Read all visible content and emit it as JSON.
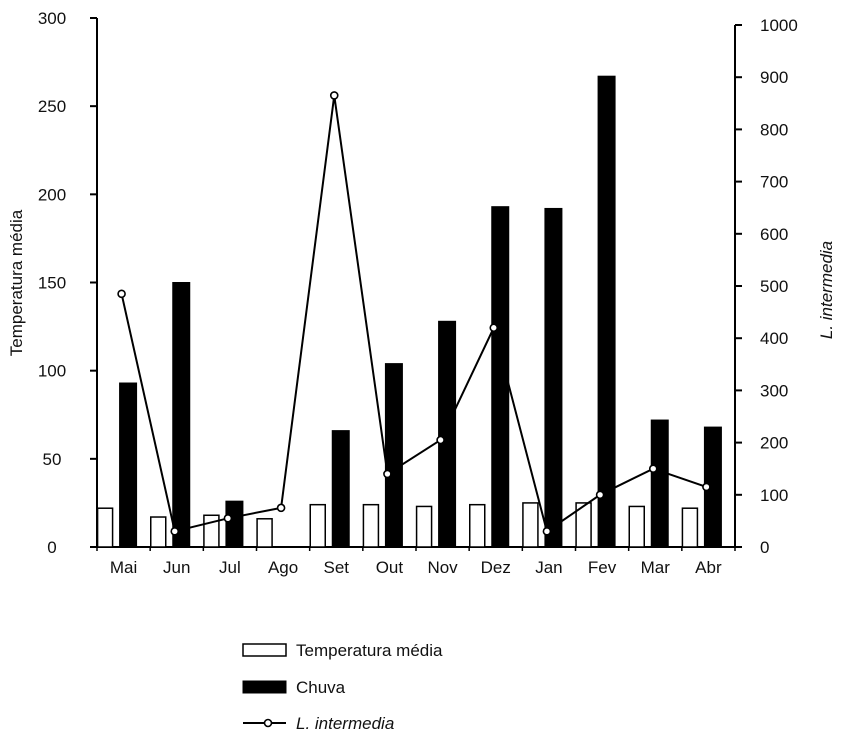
{
  "chart_data": {
    "type": "bar",
    "categories": [
      "Mai",
      "Jun",
      "Jul",
      "Ago",
      "Set",
      "Out",
      "Nov",
      "Dez",
      "Jan",
      "Fev",
      "Mar",
      "Abr"
    ],
    "series": [
      {
        "name": "Temperatura média",
        "kind": "bar",
        "axis": "left",
        "fill": "#ffffff",
        "stroke": "#000000",
        "values": [
          22,
          17,
          18,
          16,
          24,
          24,
          23,
          24,
          25,
          25,
          23,
          22
        ]
      },
      {
        "name": "Chuva",
        "kind": "bar",
        "axis": "left",
        "fill": "#000000",
        "stroke": "#000000",
        "values": [
          93,
          150,
          26,
          null,
          66,
          104,
          128,
          193,
          192,
          267,
          72,
          68
        ]
      },
      {
        "name": "L. intermedia",
        "kind": "line",
        "axis": "right",
        "stroke": "#000000",
        "marker": "open-circle",
        "values": [
          485,
          30,
          55,
          75,
          865,
          140,
          205,
          420,
          30,
          100,
          150,
          115
        ]
      }
    ],
    "ylabel": "Temperatura média",
    "y2label": "L. intermedia",
    "ylim": [
      0,
      300
    ],
    "y2lim": [
      0,
      1000
    ],
    "yticks": [
      "0",
      "50",
      "100",
      "150",
      "200",
      "250",
      "300"
    ],
    "y2ticks": [
      "0",
      "100",
      "200",
      "300",
      "400",
      "500",
      "600",
      "700",
      "800",
      "900",
      "1000"
    ],
    "legend_position": "bottom",
    "grid": false
  }
}
